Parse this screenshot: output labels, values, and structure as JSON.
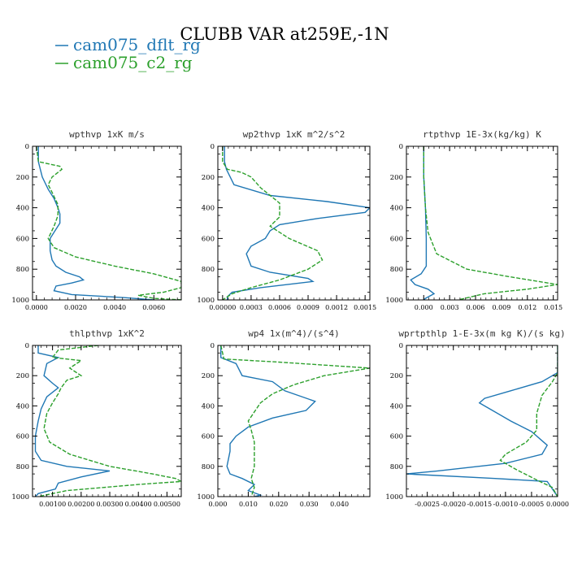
{
  "figure": {
    "title": "CLUBB VAR at259E,-1N",
    "legend": [
      {
        "label": "cam075_dflt_rg",
        "color": "#1f77b4",
        "dash": "solid"
      },
      {
        "label": "cam075_c2_rg",
        "color": "#2ca02c",
        "dash": "dash"
      }
    ]
  },
  "chart_data": [
    {
      "type": "line",
      "title": "wpthvp   1xK m/s",
      "xlim": [
        -0.0002,
        0.0074
      ],
      "ylim": [
        1000,
        0
      ],
      "xticks": [
        0,
        0.002,
        0.004,
        0.006
      ],
      "xtick_labels": [
        "0.0000",
        "0.0020",
        "0.0040",
        "0.0060"
      ],
      "yticks": [
        0,
        200,
        400,
        600,
        800,
        1000
      ],
      "ytick_labels": [
        "0",
        "200",
        "400",
        "600",
        "800",
        "1000"
      ],
      "series": [
        {
          "values": [
            [
              0.0001,
              0
            ],
            [
              0.0001,
              100
            ],
            [
              0.0002,
              150
            ],
            [
              0.0003,
              200
            ],
            [
              0.0006,
              280
            ],
            [
              0.0009,
              340
            ],
            [
              0.0011,
              400
            ],
            [
              0.0012,
              440
            ],
            [
              0.0012,
              500
            ],
            [
              0.0009,
              560
            ],
            [
              0.0007,
              600
            ],
            [
              0.0007,
              680
            ],
            [
              0.0008,
              740
            ],
            [
              0.001,
              780
            ],
            [
              0.0015,
              820
            ],
            [
              0.0022,
              850
            ],
            [
              0.0024,
              870
            ],
            [
              0.0018,
              890
            ],
            [
              0.001,
              910
            ],
            [
              0.0009,
              940
            ],
            [
              0.0018,
              965
            ],
            [
              0.0045,
              985
            ],
            [
              0.006,
              1000
            ]
          ]
        },
        {
          "values": [
            [
              0.0,
              0
            ],
            [
              0.0001,
              100
            ],
            [
              0.0012,
              130
            ],
            [
              0.0013,
              150
            ],
            [
              0.0008,
              200
            ],
            [
              0.0006,
              250
            ],
            [
              0.0008,
              300
            ],
            [
              0.0011,
              380
            ],
            [
              0.0011,
              450
            ],
            [
              0.0009,
              520
            ],
            [
              0.0006,
              600
            ],
            [
              0.0009,
              660
            ],
            [
              0.002,
              720
            ],
            [
              0.004,
              780
            ],
            [
              0.006,
              830
            ],
            [
              0.0074,
              880
            ],
            [
              0.0074,
              920
            ],
            [
              0.0065,
              950
            ],
            [
              0.0052,
              970
            ],
            [
              0.006,
              990
            ],
            [
              0.0075,
              1000
            ]
          ]
        }
      ]
    },
    {
      "type": "line",
      "title": "wp2thvp   1xK m^2/s^2",
      "xlim": [
        -5e-05,
        0.00155
      ],
      "ylim": [
        1000,
        0
      ],
      "xticks": [
        0,
        0.0003,
        0.0006,
        0.0009,
        0.0012,
        0.0015
      ],
      "xtick_labels": [
        "0.00000",
        "0.0003",
        "0.0006",
        "0.0009",
        "0.0012",
        "0.0015"
      ],
      "yticks": [
        0,
        200,
        400,
        600,
        800,
        1000
      ],
      "ytick_labels": [
        "0",
        "200",
        "400",
        "600",
        "800",
        "1000"
      ],
      "series": [
        {
          "values": [
            [
              2e-05,
              0
            ],
            [
              2e-05,
              100
            ],
            [
              4e-05,
              150
            ],
            [
              0.00012,
              250
            ],
            [
              0.0005,
              320
            ],
            [
              0.0011,
              360
            ],
            [
              0.00155,
              400
            ],
            [
              0.0015,
              430
            ],
            [
              0.001,
              470
            ],
            [
              0.0006,
              510
            ],
            [
              0.0005,
              550
            ],
            [
              0.00045,
              600
            ],
            [
              0.0003,
              650
            ],
            [
              0.00025,
              700
            ],
            [
              0.0003,
              780
            ],
            [
              0.0005,
              820
            ],
            [
              0.0009,
              860
            ],
            [
              0.00095,
              880
            ],
            [
              0.0004,
              920
            ],
            [
              0.0001,
              950
            ],
            [
              5e-05,
              980
            ],
            [
              5e-05,
              1000
            ]
          ]
        },
        {
          "values": [
            [
              0.0,
              0
            ],
            [
              0.0,
              100
            ],
            [
              5e-05,
              150
            ],
            [
              0.0002,
              170
            ],
            [
              0.0003,
              200
            ],
            [
              0.0004,
              270
            ],
            [
              0.0006,
              370
            ],
            [
              0.0006,
              460
            ],
            [
              0.0005,
              520
            ],
            [
              0.0007,
              600
            ],
            [
              0.001,
              680
            ],
            [
              0.00105,
              740
            ],
            [
              0.0009,
              800
            ],
            [
              0.0006,
              870
            ],
            [
              0.0003,
              920
            ],
            [
              0.0001,
              960
            ],
            [
              0.0,
              1000
            ]
          ]
        }
      ]
    },
    {
      "type": "line",
      "title": "rtpthvp   1E-3x(kg/kg) K",
      "xlim": [
        -0.002,
        0.0155
      ],
      "ylim": [
        1000,
        0
      ],
      "xticks": [
        0,
        0.003,
        0.006,
        0.009,
        0.012,
        0.015
      ],
      "xtick_labels": [
        "0.000",
        "0.003",
        "0.006",
        "0.009",
        "0.012",
        "0.015"
      ],
      "yticks": [
        0,
        200,
        400,
        600,
        800,
        1000
      ],
      "ytick_labels": [
        "0",
        "200",
        "400",
        "600",
        "800",
        "1000"
      ],
      "series": [
        {
          "values": [
            [
              0.0,
              0
            ],
            [
              0.0,
              200
            ],
            [
              0.0002,
              400
            ],
            [
              0.0003,
              600
            ],
            [
              0.0003,
              780
            ],
            [
              -0.0003,
              830
            ],
            [
              -0.0015,
              870
            ],
            [
              -0.001,
              900
            ],
            [
              0.0005,
              930
            ],
            [
              0.0012,
              960
            ],
            [
              0.0002,
              990
            ],
            [
              0.0,
              1000
            ]
          ]
        },
        {
          "values": [
            [
              0.0,
              0
            ],
            [
              0.0,
              200
            ],
            [
              0.0002,
              400
            ],
            [
              0.0005,
              560
            ],
            [
              0.0015,
              700
            ],
            [
              0.005,
              800
            ],
            [
              0.01,
              850
            ],
            [
              0.0155,
              900
            ],
            [
              0.012,
              930
            ],
            [
              0.007,
              960
            ],
            [
              0.0055,
              980
            ],
            [
              0.004,
              1000
            ]
          ]
        }
      ]
    },
    {
      "type": "line",
      "title": "thlpthvp   1xK^2",
      "xlim": [
        0.0003,
        0.0055
      ],
      "ylim": [
        1000,
        0
      ],
      "xticks": [
        0.001,
        0.002,
        0.003,
        0.004,
        0.005
      ],
      "xtick_labels": [
        "0.00100",
        "0.00200",
        "0.00300",
        "0.00400",
        "0.00500"
      ],
      "yticks": [
        0,
        200,
        400,
        600,
        800,
        1000
      ],
      "ytick_labels": [
        "0",
        "200",
        "400",
        "600",
        "800",
        "1000"
      ],
      "series": [
        {
          "values": [
            [
              0.0005,
              0
            ],
            [
              0.0005,
              50
            ],
            [
              0.0012,
              80
            ],
            [
              0.0008,
              120
            ],
            [
              0.0007,
              200
            ],
            [
              0.001,
              250
            ],
            [
              0.0012,
              280
            ],
            [
              0.0008,
              340
            ],
            [
              0.0006,
              420
            ],
            [
              0.0005,
              500
            ],
            [
              0.0004,
              600
            ],
            [
              0.0004,
              700
            ],
            [
              0.0006,
              760
            ],
            [
              0.0015,
              800
            ],
            [
              0.003,
              830
            ],
            [
              0.002,
              870
            ],
            [
              0.0012,
              910
            ],
            [
              0.0011,
              950
            ],
            [
              0.0005,
              980
            ],
            [
              0.0004,
              1000
            ]
          ]
        },
        {
          "values": [
            [
              0.0026,
              0
            ],
            [
              0.0012,
              30
            ],
            [
              0.001,
              80
            ],
            [
              0.002,
              100
            ],
            [
              0.0016,
              150
            ],
            [
              0.002,
              200
            ],
            [
              0.0015,
              230
            ],
            [
              0.0013,
              280
            ],
            [
              0.0012,
              320
            ],
            [
              0.001,
              380
            ],
            [
              0.0008,
              450
            ],
            [
              0.0007,
              550
            ],
            [
              0.0009,
              640
            ],
            [
              0.0016,
              720
            ],
            [
              0.003,
              800
            ],
            [
              0.0045,
              850
            ],
            [
              0.0053,
              880
            ],
            [
              0.0055,
              900
            ],
            [
              0.004,
              920
            ],
            [
              0.0015,
              960
            ],
            [
              0.0005,
              1000
            ]
          ]
        }
      ]
    },
    {
      "type": "line",
      "title": "wp4   1x(m^4)/(s^4)",
      "xlim": [
        0.0,
        0.05
      ],
      "ylim": [
        1000,
        0
      ],
      "xticks": [
        0,
        0.01,
        0.02,
        0.03,
        0.04
      ],
      "xtick_labels": [
        "0.000",
        "0.010",
        "0.020",
        "0.030",
        "0.040"
      ],
      "yticks": [
        0,
        200,
        400,
        600,
        800,
        1000
      ],
      "ytick_labels": [
        "0",
        "200",
        "400",
        "600",
        "800",
        "1000"
      ],
      "series": [
        {
          "values": [
            [
              0.001,
              0
            ],
            [
              0.001,
              80
            ],
            [
              0.006,
              120
            ],
            [
              0.008,
              200
            ],
            [
              0.018,
              240
            ],
            [
              0.022,
              300
            ],
            [
              0.032,
              370
            ],
            [
              0.029,
              430
            ],
            [
              0.018,
              480
            ],
            [
              0.01,
              540
            ],
            [
              0.006,
              600
            ],
            [
              0.004,
              650
            ],
            [
              0.004,
              700
            ],
            [
              0.003,
              800
            ],
            [
              0.004,
              850
            ],
            [
              0.008,
              880
            ],
            [
              0.012,
              920
            ],
            [
              0.01,
              960
            ],
            [
              0.014,
              990
            ],
            [
              0.012,
              1000
            ]
          ]
        },
        {
          "values": [
            [
              0.001,
              0
            ],
            [
              0.002,
              90
            ],
            [
              0.02,
              110
            ],
            [
              0.05,
              150
            ],
            [
              0.035,
              200
            ],
            [
              0.025,
              260
            ],
            [
              0.018,
              320
            ],
            [
              0.014,
              380
            ],
            [
              0.012,
              440
            ],
            [
              0.01,
              500
            ],
            [
              0.011,
              560
            ],
            [
              0.012,
              640
            ],
            [
              0.012,
              720
            ],
            [
              0.012,
              800
            ],
            [
              0.011,
              880
            ],
            [
              0.012,
              940
            ],
            [
              0.011,
              1000
            ]
          ]
        }
      ]
    },
    {
      "type": "line",
      "title": "wprtpthlp   1-E-3x(m kg K)/(s kg)",
      "xlim": [
        -0.0029,
        0.0
      ],
      "ylim": [
        1000,
        0
      ],
      "xticks": [
        -0.0025,
        -0.002,
        -0.0015,
        -0.001,
        -0.0005,
        0.0
      ],
      "xtick_labels": [
        "-0.0025",
        "-0.0020",
        "-0.0015",
        "-0.0010",
        "-0.0005",
        "0.0000"
      ],
      "yticks": [
        0,
        200,
        400,
        600,
        800,
        1000
      ],
      "ytick_labels": [
        "0",
        "200",
        "400",
        "600",
        "800",
        "1000"
      ],
      "series": [
        {
          "values": [
            [
              0.0,
              0
            ],
            [
              0.0,
              180
            ],
            [
              -0.0003,
              240
            ],
            [
              -0.0009,
              300
            ],
            [
              -0.0014,
              350
            ],
            [
              -0.0015,
              380
            ],
            [
              -0.0013,
              420
            ],
            [
              -0.0009,
              500
            ],
            [
              -0.0005,
              570
            ],
            [
              -0.0002,
              660
            ],
            [
              -0.0003,
              720
            ],
            [
              -0.001,
              780
            ],
            [
              -0.0023,
              830
            ],
            [
              -0.0029,
              850
            ],
            [
              -0.0012,
              880
            ],
            [
              -0.0002,
              900
            ],
            [
              0.0,
              1000
            ]
          ]
        },
        {
          "values": [
            [
              0.0,
              0
            ],
            [
              0.0,
              180
            ],
            [
              -0.0001,
              240
            ],
            [
              -0.0003,
              330
            ],
            [
              -0.0004,
              450
            ],
            [
              -0.0004,
              560
            ],
            [
              -0.0006,
              640
            ],
            [
              -0.001,
              720
            ],
            [
              -0.0011,
              760
            ],
            [
              -0.0008,
              820
            ],
            [
              -0.0004,
              890
            ],
            [
              -0.0001,
              940
            ],
            [
              0.0,
              1000
            ]
          ]
        }
      ]
    }
  ]
}
